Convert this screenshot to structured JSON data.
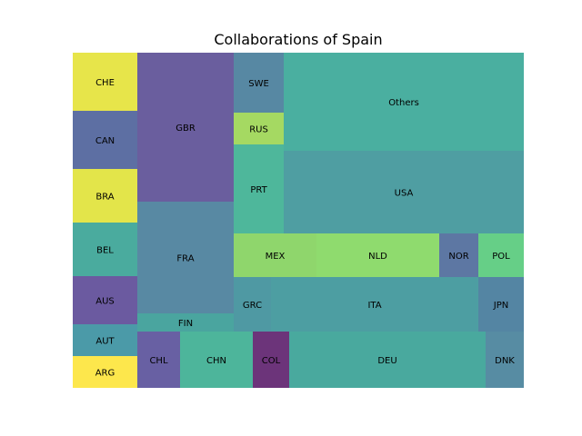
{
  "chart_data": {
    "type": "treemap",
    "title": "Collaborations of Spain",
    "tiles": [
      {
        "label": "ARG",
        "color": "#fde74c"
      },
      {
        "label": "AUT",
        "color": "#4b9aa8"
      },
      {
        "label": "AUS",
        "color": "#6b5aa0"
      },
      {
        "label": "BEL",
        "color": "#4aab9e"
      },
      {
        "label": "BRA",
        "color": "#e3e54a"
      },
      {
        "label": "CAN",
        "color": "#5d6fa3"
      },
      {
        "label": "CHE",
        "color": "#e7e54a"
      },
      {
        "label": "CHL",
        "color": "#6860a3"
      },
      {
        "label": "CHN",
        "color": "#4db59b"
      },
      {
        "label": "COL",
        "color": "#6c347a"
      },
      {
        "label": "DEU",
        "color": "#49a99e"
      },
      {
        "label": "DNK",
        "color": "#578ca3"
      },
      {
        "label": "FIN",
        "color": "#4aa59f"
      },
      {
        "label": "FRA",
        "color": "#5889a3"
      },
      {
        "label": "GBR",
        "color": "#6a5e9e"
      },
      {
        "label": "GRC",
        "color": "#4f99a3"
      },
      {
        "label": "ITA",
        "color": "#4d9ea2"
      },
      {
        "label": "JPN",
        "color": "#5485a3"
      },
      {
        "label": "MEX",
        "color": "#8fd66c"
      },
      {
        "label": "NLD",
        "color": "#8fdb6e"
      },
      {
        "label": "NOR",
        "color": "#5d77a3"
      },
      {
        "label": "POL",
        "color": "#66cf87"
      },
      {
        "label": "PRT",
        "color": "#4eb79b"
      },
      {
        "label": "RUS",
        "color": "#a5d962"
      },
      {
        "label": "SWE",
        "color": "#5788a3"
      },
      {
        "label": "USA",
        "color": "#4f9ea2"
      },
      {
        "label": "Others",
        "color": "#4aafa0"
      }
    ]
  }
}
